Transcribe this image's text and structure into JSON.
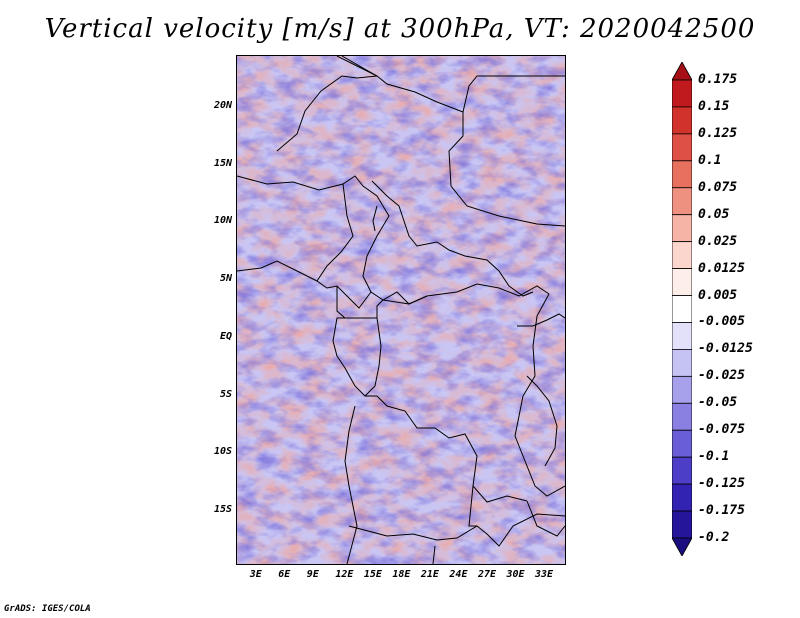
{
  "title": "Vertical velocity [m/s] at 300hPa, VT: 2020042500",
  "credit": "GrADS: IGES/COLA",
  "map": {
    "lat_labels": [
      "20N",
      "15N",
      "10N",
      "5N",
      "EQ",
      "5S",
      "10S",
      "15S"
    ],
    "lon_labels": [
      "3E",
      "6E",
      "9E",
      "12E",
      "15E",
      "18E",
      "21E",
      "24E",
      "27E",
      "30E",
      "33E"
    ],
    "lat_values": [
      20,
      15,
      10,
      5,
      0,
      -5,
      -10,
      -15
    ],
    "lon_values": [
      3,
      6,
      9,
      12,
      15,
      18,
      21,
      24,
      27,
      30,
      33
    ],
    "lon_range": [
      0.5,
      35
    ],
    "lat_range": [
      -19.5,
      24.5
    ]
  },
  "colorbar": {
    "labels": [
      "0.175",
      "0.15",
      "0.125",
      "0.1",
      "0.075",
      "0.05",
      "0.025",
      "0.0125",
      "0.005",
      "-0.005",
      "-0.0125",
      "-0.025",
      "-0.05",
      "-0.075",
      "-0.1",
      "-0.125",
      "-0.175",
      "-0.2"
    ],
    "colors": [
      "#a50f15",
      "#c01a1f",
      "#d2322c",
      "#de4f45",
      "#e7705f",
      "#ef9181",
      "#f5b4a6",
      "#fad6cd",
      "#fdeeea",
      "#ffffff",
      "#e3e1fa",
      "#c5c2f4",
      "#a7a1ec",
      "#8980e2",
      "#6a5ed7",
      "#4d3ec8",
      "#3323b3",
      "#24159a",
      "#1a0e7e"
    ]
  }
}
